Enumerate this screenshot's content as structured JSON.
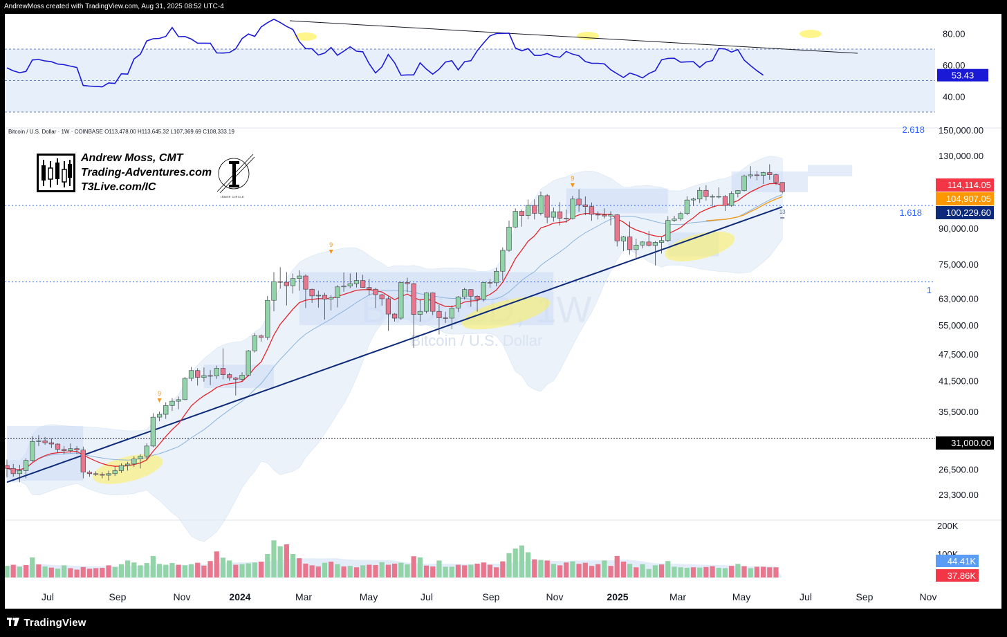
{
  "header": {
    "attribution": "AndrewMoss created with TradingView.com, Aug 31, 2025 08:52 UTC-4"
  },
  "symbol_line": "Bitcoin / U.S. Dollar · 1W · COINBASE  O113,478.00  H113,645.32  L107,369.69  C108,333.19",
  "watermark": {
    "ticker": "BTCUSD, 1W",
    "name": "Bitcoin / U.S. Dollar"
  },
  "logo": {
    "line1": "Andrew Moss, CMT",
    "line2": "Trading-Adventures.com",
    "line3": "T3Live.com/IC",
    "seal_text": "INNER CIRCLE"
  },
  "footer": {
    "brand": "TradingView"
  },
  "colors": {
    "up_candle": "#92d3a8",
    "down_candle": "#e8778d",
    "rsi_line": "#1a1ad6",
    "ema_fast": "#e3242b",
    "ema_mid": "#f19a1c",
    "ema_slow": "#0d2a7a",
    "bb_fill": "#dbe8f7",
    "fib_line": "#2962ff",
    "highlight": "#fff15a"
  },
  "rsi": {
    "axis_ticks": [
      "80.00",
      "60.00",
      "40.00"
    ],
    "current": "53.43",
    "bands": [
      70,
      50,
      30
    ]
  },
  "price_axis": {
    "ticks": [
      "150,000.00",
      "130,000.00",
      "90,000.00",
      "75,000.00",
      "63,000.00",
      "55,000.00",
      "47,500.00",
      "41,500.00",
      "35,500.00",
      "26,500.00",
      "23,300.00"
    ],
    "badges": [
      {
        "label": "114,114.05",
        "color": "#f23645"
      },
      {
        "label": "104,907.05",
        "color": "#ff9800"
      },
      {
        "label": "100,229.60",
        "color": "#0d2a7a"
      },
      {
        "label": "31,000.00",
        "color": "#000000"
      }
    ],
    "fib_labels": [
      "2.618",
      "1.618",
      "1"
    ]
  },
  "volume_axis": {
    "ticks": [
      "200K",
      "100K"
    ],
    "badges": [
      {
        "label": "44.41K",
        "color": "#5b9cf6"
      },
      {
        "label": "37.86K",
        "color": "#f23645"
      }
    ]
  },
  "time_axis": {
    "labels": [
      "Jul",
      "Sep",
      "Nov",
      "2024",
      "Mar",
      "May",
      "Jul",
      "Sep",
      "Nov",
      "2025",
      "Mar",
      "May",
      "Jul",
      "Sep",
      "Nov"
    ]
  },
  "markers": {
    "sequential_9": "9",
    "sequential_13": "13"
  },
  "chart_data": {
    "type": "candlestick",
    "interval": "1W",
    "symbol": "BTCUSD",
    "x_start": "2023-06-05",
    "candles": [
      [
        27000,
        27800,
        25400,
        26600
      ],
      [
        26600,
        27200,
        25500,
        25900
      ],
      [
        25900,
        27100,
        24800,
        26300
      ],
      [
        26300,
        28000,
        25300,
        27700
      ],
      [
        27700,
        31300,
        27500,
        30500
      ],
      [
        30500,
        31500,
        29800,
        30600
      ],
      [
        30600,
        31200,
        30000,
        30300
      ],
      [
        30300,
        31000,
        29500,
        30100
      ],
      [
        30100,
        30200,
        28800,
        29300
      ],
      [
        29300,
        29800,
        28600,
        29100
      ],
      [
        29100,
        30200,
        28800,
        29400
      ],
      [
        29400,
        29800,
        28600,
        29200
      ],
      [
        29200,
        29700,
        25300,
        26100
      ],
      [
        26100,
        26300,
        25500,
        25900
      ],
      [
        25900,
        26200,
        25600,
        25800
      ],
      [
        25800,
        26100,
        25300,
        25700
      ],
      [
        25700,
        26300,
        25000,
        25900
      ],
      [
        25900,
        26800,
        25600,
        26300
      ],
      [
        26300,
        27300,
        26000,
        27000
      ],
      [
        27000,
        27500,
        26300,
        27200
      ],
      [
        27200,
        28300,
        26800,
        27900
      ],
      [
        27900,
        28600,
        26600,
        28300
      ],
      [
        28300,
        30200,
        27800,
        29800
      ],
      [
        29800,
        35200,
        29600,
        34500
      ],
      [
        34500,
        35500,
        33800,
        35000
      ],
      [
        35000,
        37200,
        34200,
        36600
      ],
      [
        36600,
        38000,
        35600,
        37400
      ],
      [
        37400,
        38300,
        35900,
        37700
      ],
      [
        37700,
        42300,
        37600,
        42000
      ],
      [
        42000,
        44500,
        41400,
        43700
      ],
      [
        43700,
        44200,
        40500,
        42200
      ],
      [
        42200,
        44400,
        41300,
        42600
      ],
      [
        42600,
        43800,
        40600,
        42500
      ],
      [
        42500,
        44800,
        41900,
        44200
      ],
      [
        44200,
        48900,
        41800,
        42800
      ],
      [
        42800,
        43200,
        41500,
        42100
      ],
      [
        42100,
        42300,
        38500,
        41800
      ],
      [
        41800,
        43300,
        41500,
        42700
      ],
      [
        42700,
        48500,
        42500,
        48300
      ],
      [
        48300,
        52800,
        47900,
        52100
      ],
      [
        52100,
        52500,
        50600,
        51700
      ],
      [
        51700,
        63800,
        51000,
        62400
      ],
      [
        62400,
        72000,
        59000,
        68600
      ],
      [
        68600,
        73800,
        66200,
        68400
      ],
      [
        68400,
        72000,
        60800,
        67200
      ],
      [
        67200,
        71500,
        64600,
        69700
      ],
      [
        69700,
        72700,
        65500,
        70600
      ],
      [
        70600,
        71200,
        60000,
        66000
      ],
      [
        66000,
        66200,
        61600,
        63800
      ],
      [
        63800,
        65500,
        60100,
        64000
      ],
      [
        64000,
        64800,
        56600,
        62800
      ],
      [
        62800,
        64000,
        59300,
        63200
      ],
      [
        63200,
        67400,
        60200,
        66800
      ],
      [
        66800,
        71900,
        65200,
        67100
      ],
      [
        67100,
        71500,
        66400,
        67900
      ],
      [
        67900,
        71900,
        66600,
        69000
      ],
      [
        69000,
        71000,
        66500,
        66600
      ],
      [
        66600,
        69600,
        64000,
        66000
      ],
      [
        66000,
        66500,
        60000,
        64200
      ],
      [
        64200,
        64500,
        60700,
        62900
      ],
      [
        62900,
        63600,
        53500,
        58200
      ],
      [
        58200,
        58500,
        56000,
        57000
      ],
      [
        57000,
        68500,
        56500,
        68300
      ],
      [
        68300,
        70000,
        65000,
        67900
      ],
      [
        67900,
        68200,
        49000,
        58100
      ],
      [
        58100,
        62700,
        56000,
        59000
      ],
      [
        59000,
        65000,
        58400,
        64800
      ],
      [
        64800,
        65000,
        57900,
        59000
      ],
      [
        59000,
        61000,
        52500,
        57100
      ],
      [
        57100,
        58900,
        55600,
        57000
      ],
      [
        57000,
        60800,
        53900,
        60000
      ],
      [
        60000,
        63800,
        58800,
        63500
      ],
      [
        63500,
        66500,
        62700,
        65900
      ],
      [
        65900,
        66000,
        60400,
        63700
      ],
      [
        63700,
        64000,
        58900,
        62800
      ],
      [
        62800,
        68400,
        62100,
        68300
      ],
      [
        68300,
        69500,
        66400,
        68200
      ],
      [
        68200,
        73600,
        67000,
        72300
      ],
      [
        72300,
        81600,
        69000,
        80400
      ],
      [
        80400,
        93500,
        79800,
        90500
      ],
      [
        90500,
        99500,
        90100,
        98000
      ],
      [
        98000,
        98900,
        90700,
        95900
      ],
      [
        95900,
        104000,
        94200,
        101000
      ],
      [
        101000,
        104100,
        94100,
        97000
      ],
      [
        97000,
        108300,
        96000,
        106100
      ],
      [
        106100,
        107000,
        92300,
        95100
      ],
      [
        95100,
        99900,
        93000,
        97800
      ],
      [
        97800,
        102700,
        91200,
        94600
      ],
      [
        94600,
        98900,
        92500,
        94500
      ],
      [
        94500,
        106000,
        94000,
        104300
      ],
      [
        104300,
        109600,
        97800,
        101300
      ],
      [
        101300,
        105700,
        96100,
        100400
      ],
      [
        100400,
        102500,
        93400,
        96500
      ],
      [
        96500,
        98000,
        94000,
        96200
      ],
      [
        96200,
        99500,
        94500,
        95700
      ],
      [
        95700,
        98000,
        91300,
        96300
      ],
      [
        96300,
        96600,
        82000,
        84300
      ],
      [
        84300,
        86500,
        80100,
        86100
      ],
      [
        86100,
        93000,
        78600,
        80700
      ],
      [
        80700,
        85300,
        76600,
        82600
      ],
      [
        82600,
        84200,
        81200,
        83900
      ],
      [
        83900,
        88700,
        82000,
        82400
      ],
      [
        82400,
        84300,
        74500,
        83700
      ],
      [
        83700,
        86000,
        79100,
        84500
      ],
      [
        84500,
        95600,
        83900,
        93600
      ],
      [
        93600,
        95800,
        92900,
        94300
      ],
      [
        94300,
        97900,
        93400,
        96900
      ],
      [
        96900,
        105800,
        96100,
        103800
      ],
      [
        103800,
        105000,
        100700,
        104300
      ],
      [
        104300,
        110700,
        102200,
        109000
      ],
      [
        109000,
        111900,
        103400,
        105600
      ],
      [
        105600,
        106800,
        100400,
        105700
      ],
      [
        105700,
        110600,
        104600,
        105700
      ],
      [
        105700,
        106500,
        98200,
        100900
      ],
      [
        100900,
        108500,
        100300,
        107300
      ],
      [
        107300,
        109100,
        105200,
        108900
      ],
      [
        108900,
        118000,
        108400,
        117300
      ],
      [
        117300,
        123200,
        115700,
        117900
      ],
      [
        117900,
        120300,
        114700,
        117600
      ],
      [
        117600,
        119800,
        112600,
        119300
      ],
      [
        119300,
        124400,
        115000,
        118000
      ],
      [
        118000,
        118600,
        112000,
        113500
      ],
      [
        113500,
        113650,
        107400,
        108300
      ]
    ],
    "rsi_values": [
      58.1,
      56.2,
      55.0,
      55.8,
      63.1,
      63.4,
      62.5,
      62.0,
      60.5,
      60.1,
      59.2,
      58.3,
      46.9,
      46.5,
      46.3,
      46.0,
      48.5,
      48.2,
      54.3,
      54.1,
      63.7,
      66.8,
      75.2,
      76.6,
      76.8,
      78.1,
      83.7,
      77.9,
      78.0,
      76.4,
      73.8,
      73.8,
      73.7,
      67.6,
      67.5,
      67.8,
      70.2,
      76.7,
      79.6,
      78.1,
      84.1,
      86.8,
      89.0,
      86.9,
      84.4,
      82.5,
      74.8,
      70.3,
      70.2,
      66.2,
      67.5,
      71.0,
      66.1,
      68.7,
      71.5,
      68.7,
      68.3,
      60.7,
      54.9,
      58.7,
      66.6,
      61.3,
      53.4,
      53.6,
      53.6,
      61.3,
      57.3,
      54.1,
      57.2,
      61.8,
      62.6,
      56.8,
      62.0,
      62.6,
      69.0,
      73.9,
      78.4,
      79.9,
      80.0,
      80.1,
      70.7,
      68.9,
      70.3,
      66.0,
      66.0,
      67.2,
      65.4,
      64.8,
      68.5,
      66.8,
      65.8,
      62.1,
      61.0,
      61.0,
      60.6,
      56.9,
      54.4,
      52.0,
      54.8,
      53.5,
      51.7,
      54.5,
      56.3,
      63.2,
      64.1,
      64.2,
      61.7,
      61.9,
      62.0,
      58.4,
      61.8,
      62.7,
      70.4,
      70.1,
      68.1,
      69.7,
      63.0,
      59.5,
      56.3,
      53.43
    ],
    "volume_k": [
      [
        41,
        0
      ],
      [
        45,
        1
      ],
      [
        38,
        0
      ],
      [
        44,
        1
      ],
      [
        71,
        0
      ],
      [
        46,
        1
      ],
      [
        39,
        0
      ],
      [
        35,
        1
      ],
      [
        31,
        0
      ],
      [
        43,
        0
      ],
      [
        33,
        1
      ],
      [
        28,
        1
      ],
      [
        37,
        1
      ],
      [
        31,
        1
      ],
      [
        33,
        1
      ],
      [
        34,
        1
      ],
      [
        43,
        1
      ],
      [
        37,
        0
      ],
      [
        47,
        0
      ],
      [
        60,
        0
      ],
      [
        53,
        0
      ],
      [
        43,
        0
      ],
      [
        51,
        0
      ],
      [
        76,
        0
      ],
      [
        48,
        0
      ],
      [
        45,
        0
      ],
      [
        51,
        0
      ],
      [
        45,
        1
      ],
      [
        43,
        0
      ],
      [
        47,
        0
      ],
      [
        52,
        1
      ],
      [
        42,
        1
      ],
      [
        58,
        1
      ],
      [
        92,
        1
      ],
      [
        70,
        0
      ],
      [
        60,
        0
      ],
      [
        45,
        1
      ],
      [
        47,
        0
      ],
      [
        50,
        0
      ],
      [
        53,
        0
      ],
      [
        56,
        1
      ],
      [
        83,
        0
      ],
      [
        131,
        0
      ],
      [
        110,
        0
      ],
      [
        117,
        1
      ],
      [
        83,
        0
      ],
      [
        68,
        1
      ],
      [
        49,
        1
      ],
      [
        43,
        1
      ],
      [
        39,
        1
      ],
      [
        52,
        0
      ],
      [
        56,
        1
      ],
      [
        47,
        0
      ],
      [
        39,
        1
      ],
      [
        41,
        0
      ],
      [
        36,
        1
      ],
      [
        43,
        0
      ],
      [
        45,
        1
      ],
      [
        44,
        1
      ],
      [
        54,
        0
      ],
      [
        45,
        1
      ],
      [
        49,
        1
      ],
      [
        52,
        0
      ],
      [
        46,
        0
      ],
      [
        75,
        1
      ],
      [
        71,
        0
      ],
      [
        42,
        1
      ],
      [
        39,
        1
      ],
      [
        60,
        0
      ],
      [
        38,
        0
      ],
      [
        38,
        0
      ],
      [
        45,
        1
      ],
      [
        43,
        1
      ],
      [
        45,
        0
      ],
      [
        49,
        1
      ],
      [
        53,
        1
      ],
      [
        45,
        1
      ],
      [
        36,
        1
      ],
      [
        57,
        1
      ],
      [
        86,
        0
      ],
      [
        102,
        0
      ],
      [
        113,
        0
      ],
      [
        89,
        0
      ],
      [
        64,
        1
      ],
      [
        62,
        0
      ],
      [
        60,
        1
      ],
      [
        48,
        0
      ],
      [
        43,
        1
      ],
      [
        53,
        1
      ],
      [
        57,
        0
      ],
      [
        48,
        1
      ],
      [
        52,
        1
      ],
      [
        41,
        1
      ],
      [
        47,
        1
      ],
      [
        60,
        0
      ],
      [
        41,
        1
      ],
      [
        76,
        1
      ],
      [
        56,
        1
      ],
      [
        48,
        0
      ],
      [
        36,
        1
      ],
      [
        47,
        0
      ],
      [
        30,
        0
      ],
      [
        43,
        0
      ],
      [
        46,
        1
      ],
      [
        58,
        0
      ],
      [
        38,
        0
      ],
      [
        36,
        0
      ],
      [
        34,
        0
      ],
      [
        36,
        1
      ],
      [
        35,
        0
      ],
      [
        37,
        1
      ],
      [
        40,
        1
      ],
      [
        34,
        0
      ],
      [
        33,
        0
      ],
      [
        41,
        1
      ],
      [
        48,
        0
      ],
      [
        40,
        1
      ],
      [
        33,
        0
      ],
      [
        38,
        1
      ],
      [
        38,
        1
      ],
      [
        36,
        1
      ],
      [
        36,
        1
      ]
    ],
    "highlights": [
      "2023-09 to 2023-10 base",
      "2024-08 to 2024-09 base",
      "2025-03 to 2025-04 base"
    ],
    "fib_levels": [
      {
        "label": "2.618",
        "price": 150000
      },
      {
        "label": "1.618",
        "price": 101000
      },
      {
        "label": "1",
        "price": 68500
      }
    ],
    "horizontal_line": {
      "price": 31000
    }
  }
}
